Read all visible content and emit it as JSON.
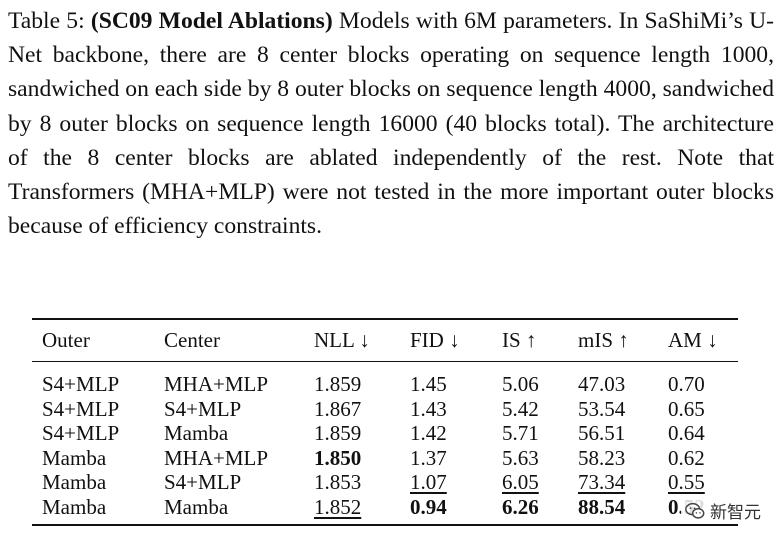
{
  "caption": {
    "label": "Table 5: ",
    "bold": "(SC09 Model Ablations)",
    "text": " Models with 6M parameters. In SaShiMi’s U-Net backbone, there are 8 center blocks operat­ing on sequence length 1000, sandwiched on each side by 8 outer blocks on sequence length 4000, sandwiched by 8 outer blocks on sequence length 16000 (40 blocks total). The architecture of the 8 center blocks are ablated independently of the rest. Note that Transformers (MHA+MLP) were not tested in the more im­portant outer blocks because of efficiency constraints."
  },
  "table": {
    "headers": [
      "Outer",
      "Center",
      "NLL ↓",
      "FID ↓",
      "IS ↑",
      "mIS ↑",
      "AM ↓"
    ],
    "rows": [
      [
        "S4+MLP",
        "MHA+MLP",
        "1.859",
        "1.45",
        "5.06",
        "47.03",
        "0.70"
      ],
      [
        "S4+MLP",
        "S4+MLP",
        "1.867",
        "1.43",
        "5.42",
        "53.54",
        "0.65"
      ],
      [
        "S4+MLP",
        "Mamba",
        "1.859",
        "1.42",
        "5.71",
        "56.51",
        "0.64"
      ],
      [
        "Mamba",
        "MHA+MLP",
        "1.850",
        "1.37",
        "5.63",
        "58.23",
        "0.62"
      ],
      [
        "Mamba",
        "S4+MLP",
        "1.853",
        "1.07",
        "6.05",
        "73.34",
        "0.55"
      ],
      [
        "Mamba",
        "Mamba",
        "1.852",
        "0.94",
        "6.26",
        "88.54",
        "0.52"
      ]
    ],
    "styles": [
      [
        "",
        "",
        "",
        "",
        "",
        "",
        ""
      ],
      [
        "",
        "",
        "",
        "",
        "",
        "",
        ""
      ],
      [
        "",
        "",
        "",
        "",
        "",
        "",
        ""
      ],
      [
        "",
        "",
        "bold",
        "",
        "",
        "",
        ""
      ],
      [
        "",
        "",
        "",
        "ul",
        "ul",
        "ul",
        "ul"
      ],
      [
        "",
        "",
        "ul",
        "bold",
        "bold",
        "bold",
        "bold"
      ]
    ]
  },
  "watermark": {
    "text": "新智元",
    "icon": "wechat-logo-icon"
  }
}
